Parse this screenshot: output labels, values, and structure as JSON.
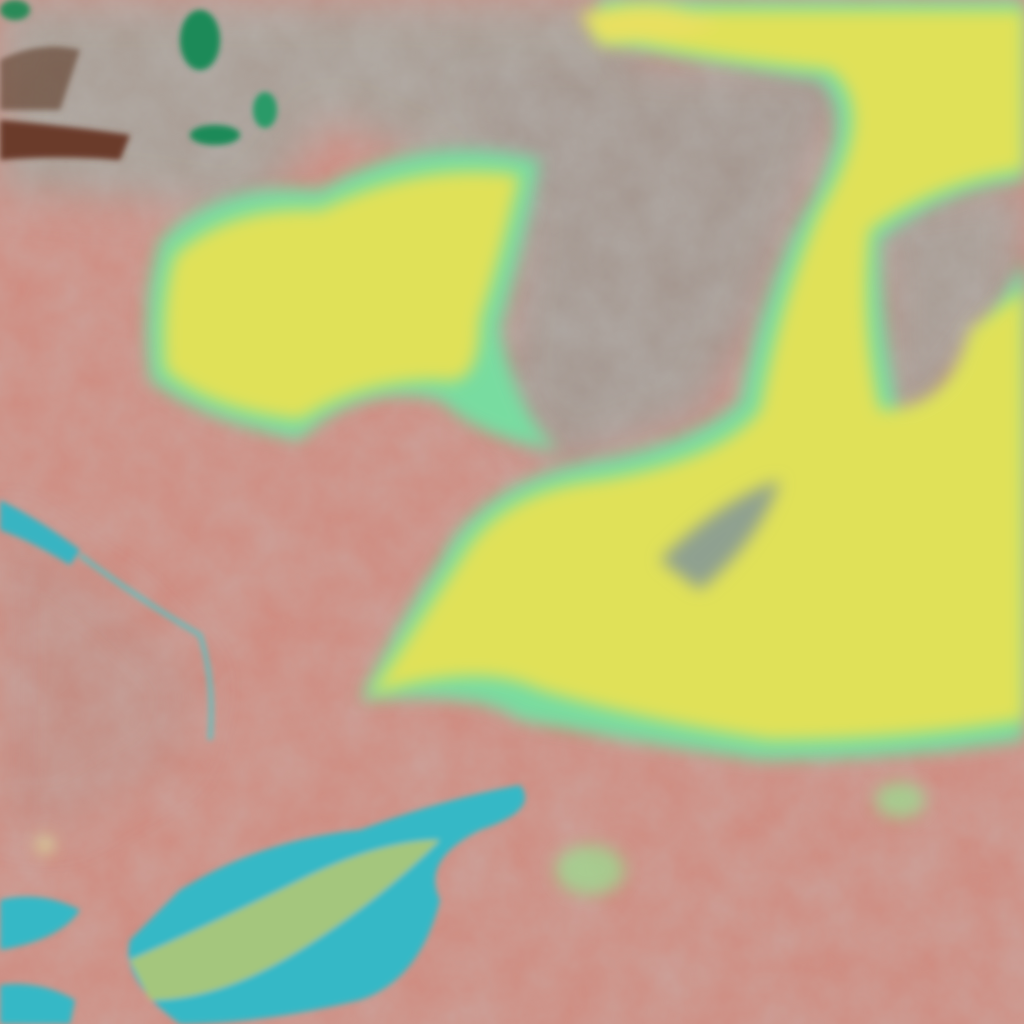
{
  "image": {
    "kind": "false-color satellite imagery",
    "colors": {
      "land": "#d08a7e",
      "land_grey": "#a89a92",
      "cloud": "#e2e45a",
      "cloud_edge": "#6fe0a0",
      "water": "#34b8c6",
      "vegetation_dark": "#2a7a50"
    }
  }
}
